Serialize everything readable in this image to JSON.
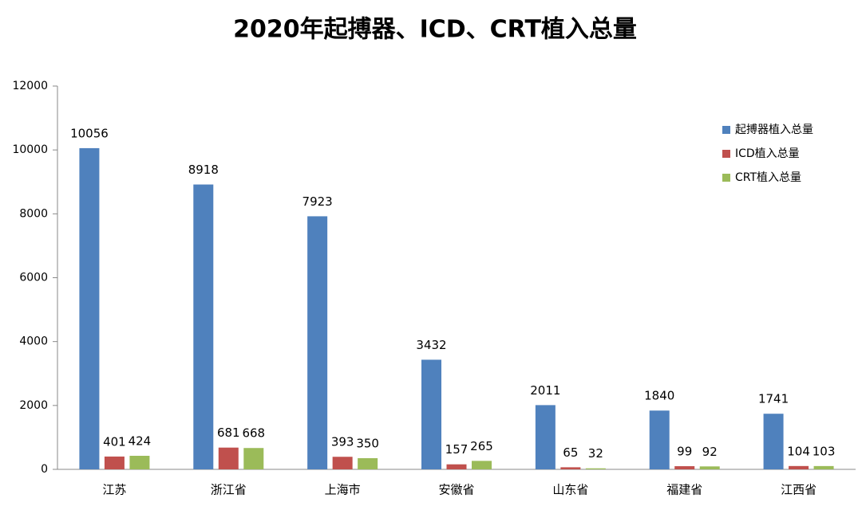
{
  "chart_data": {
    "type": "bar",
    "title": "2020年起搏器、ICD、CRT植入总量",
    "categories": [
      "江苏",
      "浙江省",
      "上海市",
      "安徽省",
      "山东省",
      "福建省",
      "江西省"
    ],
    "series": [
      {
        "name": "起搏器植入总量",
        "color": "#4f81bd",
        "values": [
          10056,
          8918,
          7923,
          3432,
          2011,
          1840,
          1741
        ]
      },
      {
        "name": "ICD植入总量",
        "color": "#c0504d",
        "values": [
          401,
          681,
          393,
          157,
          65,
          99,
          104
        ]
      },
      {
        "name": "CRT植入总量",
        "color": "#9bbb59",
        "values": [
          424,
          668,
          350,
          265,
          32,
          92,
          103
        ]
      }
    ],
    "ylim": [
      0,
      12000
    ],
    "yticks": [
      0,
      2000,
      4000,
      6000,
      8000,
      10000,
      12000
    ],
    "grid": false,
    "legend": "right"
  }
}
